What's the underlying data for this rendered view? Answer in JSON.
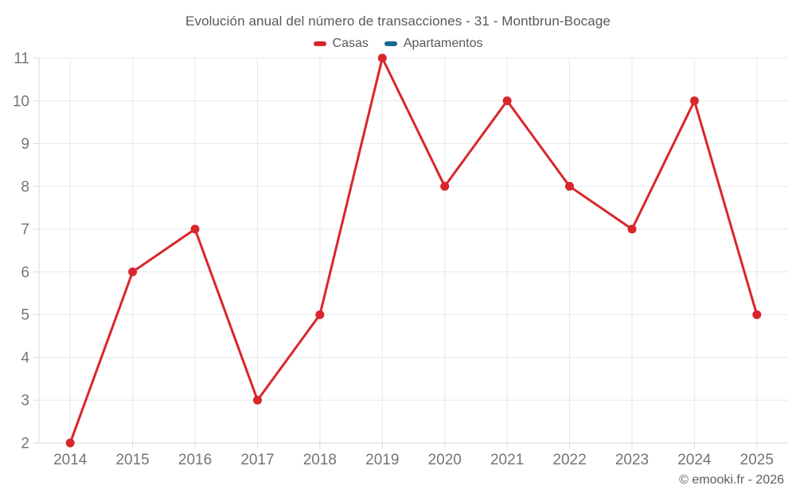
{
  "header": {
    "title": "Evolución anual del número de transacciones - 31 - Montbrun-Bocage",
    "legend": [
      {
        "label": "Casas",
        "color": "#d8262c"
      },
      {
        "label": "Apartamentos",
        "color": "#17698f"
      }
    ]
  },
  "footer": {
    "copyright": "© emooki.fr - 2026"
  },
  "chart_data": {
    "type": "line",
    "title": "Evolución anual del número de transacciones - 31 - Montbrun-Bocage",
    "categories": [
      "2014",
      "2015",
      "2016",
      "2017",
      "2018",
      "2019",
      "2020",
      "2021",
      "2022",
      "2023",
      "2024",
      "2025"
    ],
    "series": [
      {
        "name": "Casas",
        "color": "#d8262c",
        "values": [
          2,
          6,
          7,
          3,
          5,
          11,
          8,
          10,
          8,
          7,
          10,
          5
        ]
      },
      {
        "name": "Apartamentos",
        "color": "#17698f",
        "values": []
      }
    ],
    "xlabel": "",
    "ylabel": "",
    "ylim": [
      2,
      11
    ],
    "yticks": [
      2,
      3,
      4,
      5,
      6,
      7,
      8,
      9,
      10,
      11
    ],
    "grid": true,
    "legend_position": "top",
    "marker_radius": 5.5,
    "line_width": 3,
    "tick_label_color": "#757575",
    "grid_color": "#e8e8e8",
    "axis_color": "#d9d9d9"
  }
}
